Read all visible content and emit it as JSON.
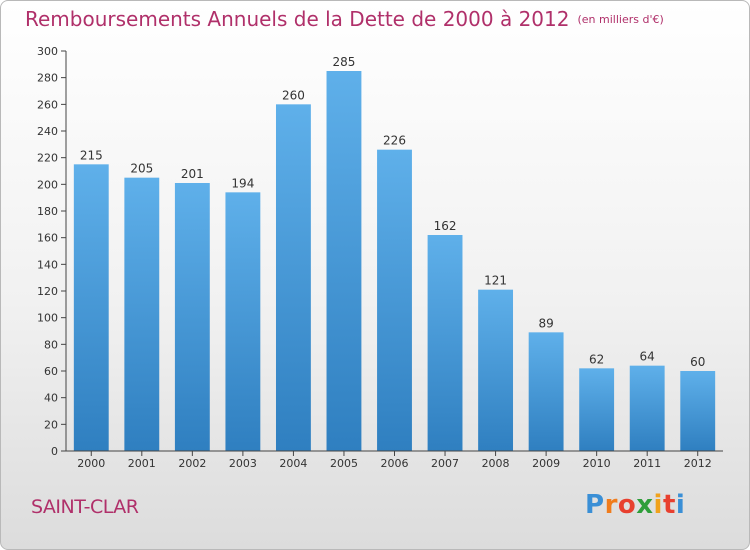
{
  "header": {
    "title": "Remboursements Annuels de la Dette de 2000 à 2012",
    "subtitle": "(en milliers d'€)"
  },
  "footer": {
    "commune": "SAINT-CLAR",
    "logo_letters": [
      "P",
      "r",
      "o",
      "x",
      "i",
      "t",
      "i"
    ],
    "logo_colors": [
      "#3a8fd6",
      "#f07c1c",
      "#e8402f",
      "#2e9e3a",
      "#f0a21c",
      "#e8402f",
      "#3a8fd6"
    ]
  },
  "chart_data": {
    "type": "bar",
    "title": "Remboursements Annuels de la Dette de 2000 à 2012",
    "categories": [
      "2000",
      "2001",
      "2002",
      "2003",
      "2004",
      "2005",
      "2006",
      "2007",
      "2008",
      "2009",
      "2010",
      "2011",
      "2012"
    ],
    "values": [
      215,
      205,
      201,
      194,
      260,
      285,
      226,
      162,
      121,
      89,
      62,
      64,
      60
    ],
    "ylim": [
      0,
      300
    ],
    "yticks": [
      0,
      20,
      40,
      60,
      80,
      100,
      120,
      140,
      160,
      180,
      200,
      220,
      240,
      260,
      280,
      300
    ],
    "grid": false,
    "bar_color_top": "#5fb0ea",
    "bar_color_bottom": "#2f7fc0"
  }
}
